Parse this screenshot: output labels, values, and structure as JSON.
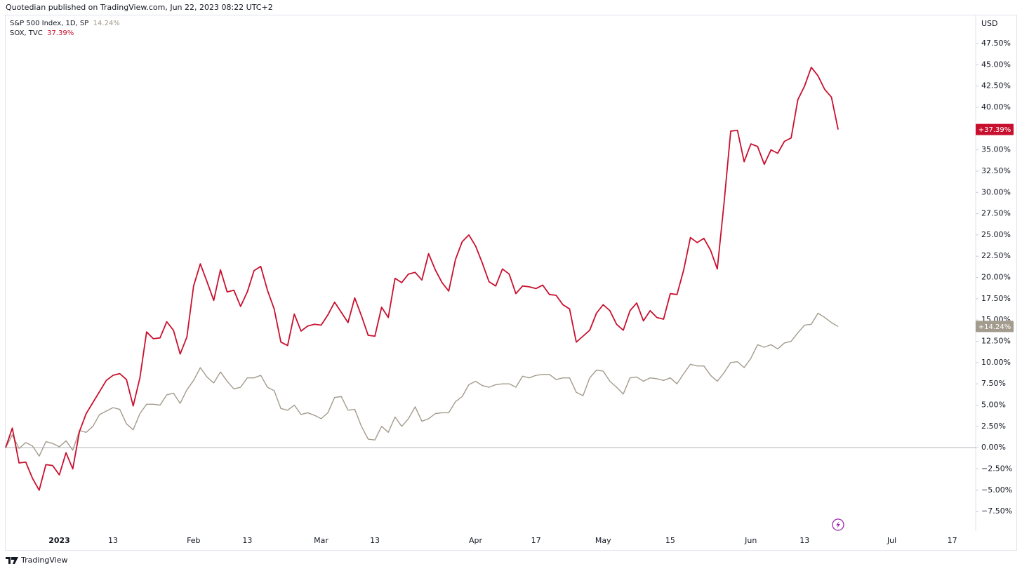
{
  "header": "Quotedian published on TradingView.com, Jun 22, 2023 08:22 UTC+2",
  "footer": "TradingView",
  "chart_data": {
    "type": "line",
    "currency": "USD",
    "categories": [
      null,
      null,
      null,
      null,
      null,
      null,
      null,
      null,
      "2023",
      null,
      null,
      null,
      null,
      null,
      null,
      null,
      "13",
      null,
      null,
      null,
      null,
      null,
      null,
      null,
      null,
      null,
      null,
      null,
      "Feb",
      null,
      null,
      null,
      null,
      null,
      null,
      null,
      "13",
      null,
      null,
      null,
      null,
      null,
      null,
      null,
      null,
      null,
      null,
      "Mar",
      null,
      null,
      null,
      null,
      null,
      null,
      null,
      "13",
      null,
      null,
      null,
      null,
      null,
      null,
      null,
      null,
      null,
      null,
      null,
      null,
      null,
      null,
      "Apr",
      null,
      null,
      null,
      null,
      null,
      null,
      null,
      null,
      "17",
      null,
      null,
      null,
      null,
      null,
      null,
      null,
      null,
      null,
      "May",
      null,
      null,
      null,
      null,
      null,
      null,
      null,
      null,
      null,
      "15",
      null,
      null,
      null,
      null,
      null,
      null,
      null,
      null,
      null,
      null,
      null,
      "Jun",
      null,
      null,
      null,
      null,
      null,
      null,
      null,
      "13",
      null,
      null,
      null,
      null,
      null,
      null,
      null,
      null,
      null,
      null,
      null,
      null,
      "Jul",
      null,
      null,
      null,
      null,
      null,
      null,
      null,
      null,
      "17",
      null,
      null,
      null
    ],
    "series": [
      {
        "name": "S&P 500 Index, 1D, SP",
        "legend_value": "14.24%",
        "last_label": "+14.24%",
        "color": "#a39b8d",
        "values": [
          0,
          1.5,
          -0.1,
          0.6,
          0.2,
          -1.0,
          0.7,
          0.5,
          0.1,
          0.8,
          -0.3,
          2.0,
          1.8,
          2.5,
          3.9,
          4.3,
          4.7,
          4.5,
          2.8,
          2.1,
          4.0,
          5.1,
          5.1,
          5.0,
          6.2,
          6.4,
          5.2,
          6.8,
          7.9,
          9.4,
          8.3,
          7.6,
          8.9,
          7.8,
          6.9,
          7.1,
          8.2,
          8.2,
          8.5,
          7.1,
          6.7,
          4.6,
          4.4,
          5.0,
          3.9,
          4.1,
          3.8,
          3.4,
          4.1,
          5.9,
          6.0,
          4.4,
          4.5,
          2.5,
          1.0,
          0.9,
          2.5,
          1.8,
          3.6,
          2.5,
          3.4,
          4.8,
          3.1,
          3.4,
          4.0,
          4.1,
          4.1,
          5.4,
          6.0,
          7.4,
          7.8,
          7.3,
          7.1,
          7.4,
          7.5,
          7.5,
          7.1,
          8.4,
          8.2,
          8.5,
          8.6,
          8.6,
          8.0,
          8.2,
          8.2,
          6.5,
          6.1,
          8.2,
          9.1,
          9.0,
          7.8,
          7.1,
          6.3,
          8.2,
          8.3,
          7.8,
          8.2,
          8.1,
          7.9,
          8.2,
          7.5,
          8.7,
          9.8,
          9.6,
          9.6,
          8.5,
          7.8,
          8.8,
          10.0,
          10.1,
          9.4,
          10.5,
          12.1,
          11.8,
          12.1,
          11.6,
          12.3,
          12.5,
          13.5,
          14.4,
          14.5,
          15.8,
          15.3,
          14.7,
          14.24,
          null,
          null,
          null,
          null,
          null,
          null,
          null,
          null,
          null,
          null,
          null,
          null,
          null,
          null,
          null,
          null,
          null,
          null,
          null,
          null
        ]
      },
      {
        "name": "SOX, TVC",
        "legend_value": "37.39%",
        "last_label": "+37.39%",
        "color": "#c8102e",
        "values": [
          0,
          2.3,
          -1.8,
          -1.7,
          -3.6,
          -5.0,
          -2.0,
          -2.1,
          -3.2,
          -0.6,
          -2.5,
          1.9,
          4.0,
          5.3,
          6.6,
          7.9,
          8.5,
          8.7,
          8.0,
          4.9,
          8.2,
          13.6,
          12.8,
          12.9,
          14.8,
          13.8,
          11.0,
          13.0,
          19.0,
          21.6,
          19.5,
          17.3,
          20.9,
          18.3,
          18.5,
          16.6,
          18.3,
          20.8,
          21.3,
          18.5,
          16.3,
          12.4,
          12.0,
          15.7,
          13.7,
          14.3,
          14.5,
          14.4,
          15.6,
          17.1,
          15.9,
          14.7,
          17.6,
          15.5,
          13.2,
          13.1,
          16.5,
          15.3,
          19.9,
          19.4,
          20.4,
          20.6,
          19.7,
          22.8,
          20.9,
          19.4,
          18.4,
          22.1,
          24.2,
          25.0,
          23.7,
          21.7,
          19.5,
          19.0,
          21.0,
          20.4,
          18.1,
          19.0,
          18.9,
          18.7,
          19.1,
          18.0,
          17.9,
          16.8,
          16.3,
          12.4,
          13.1,
          13.8,
          15.8,
          16.8,
          16.1,
          14.5,
          13.8,
          16.1,
          17.0,
          14.9,
          16.1,
          15.3,
          15.1,
          18.1,
          18.0,
          20.9,
          24.7,
          24.1,
          24.6,
          23.2,
          21.0,
          28.7,
          37.2,
          37.3,
          33.6,
          35.7,
          35.4,
          33.3,
          35.0,
          34.6,
          36.0,
          36.4,
          40.9,
          42.5,
          44.7,
          43.7,
          42.1,
          41.2,
          37.39,
          null,
          null,
          null,
          null,
          null,
          null,
          null,
          null,
          null,
          null,
          null,
          null,
          null,
          null,
          null,
          null,
          null,
          null,
          null,
          null
        ]
      }
    ],
    "ylim": [
      -9.8,
      50.8
    ],
    "yticks": [
      {
        "value": -7.5,
        "label": "−7.50%"
      },
      {
        "value": -5,
        "label": "−5.00%"
      },
      {
        "value": -2.5,
        "label": "−2.50%"
      },
      {
        "value": 0,
        "label": "0.00%"
      },
      {
        "value": 2.5,
        "label": "2.50%"
      },
      {
        "value": 5,
        "label": "5.00%"
      },
      {
        "value": 7.5,
        "label": "7.50%"
      },
      {
        "value": 10,
        "label": "10.00%"
      },
      {
        "value": 12.5,
        "label": "12.50%"
      },
      {
        "value": 15,
        "label": "15.00%"
      },
      {
        "value": 17.5,
        "label": "17.50%"
      },
      {
        "value": 20,
        "label": "20.00%"
      },
      {
        "value": 22.5,
        "label": "22.50%"
      },
      {
        "value": 25,
        "label": "25.00%"
      },
      {
        "value": 27.5,
        "label": "27.50%"
      },
      {
        "value": 30,
        "label": "30.00%"
      },
      {
        "value": 32.5,
        "label": "32.50%"
      },
      {
        "value": 35,
        "label": "35.00%"
      },
      {
        "value": 37.5,
        "label": "37.50%"
      },
      {
        "value": 40,
        "label": "40.00%"
      },
      {
        "value": 42.5,
        "label": "42.50%"
      },
      {
        "value": 45,
        "label": "45.00%"
      },
      {
        "value": 47.5,
        "label": "47.50%"
      }
    ],
    "zero_line": true
  }
}
